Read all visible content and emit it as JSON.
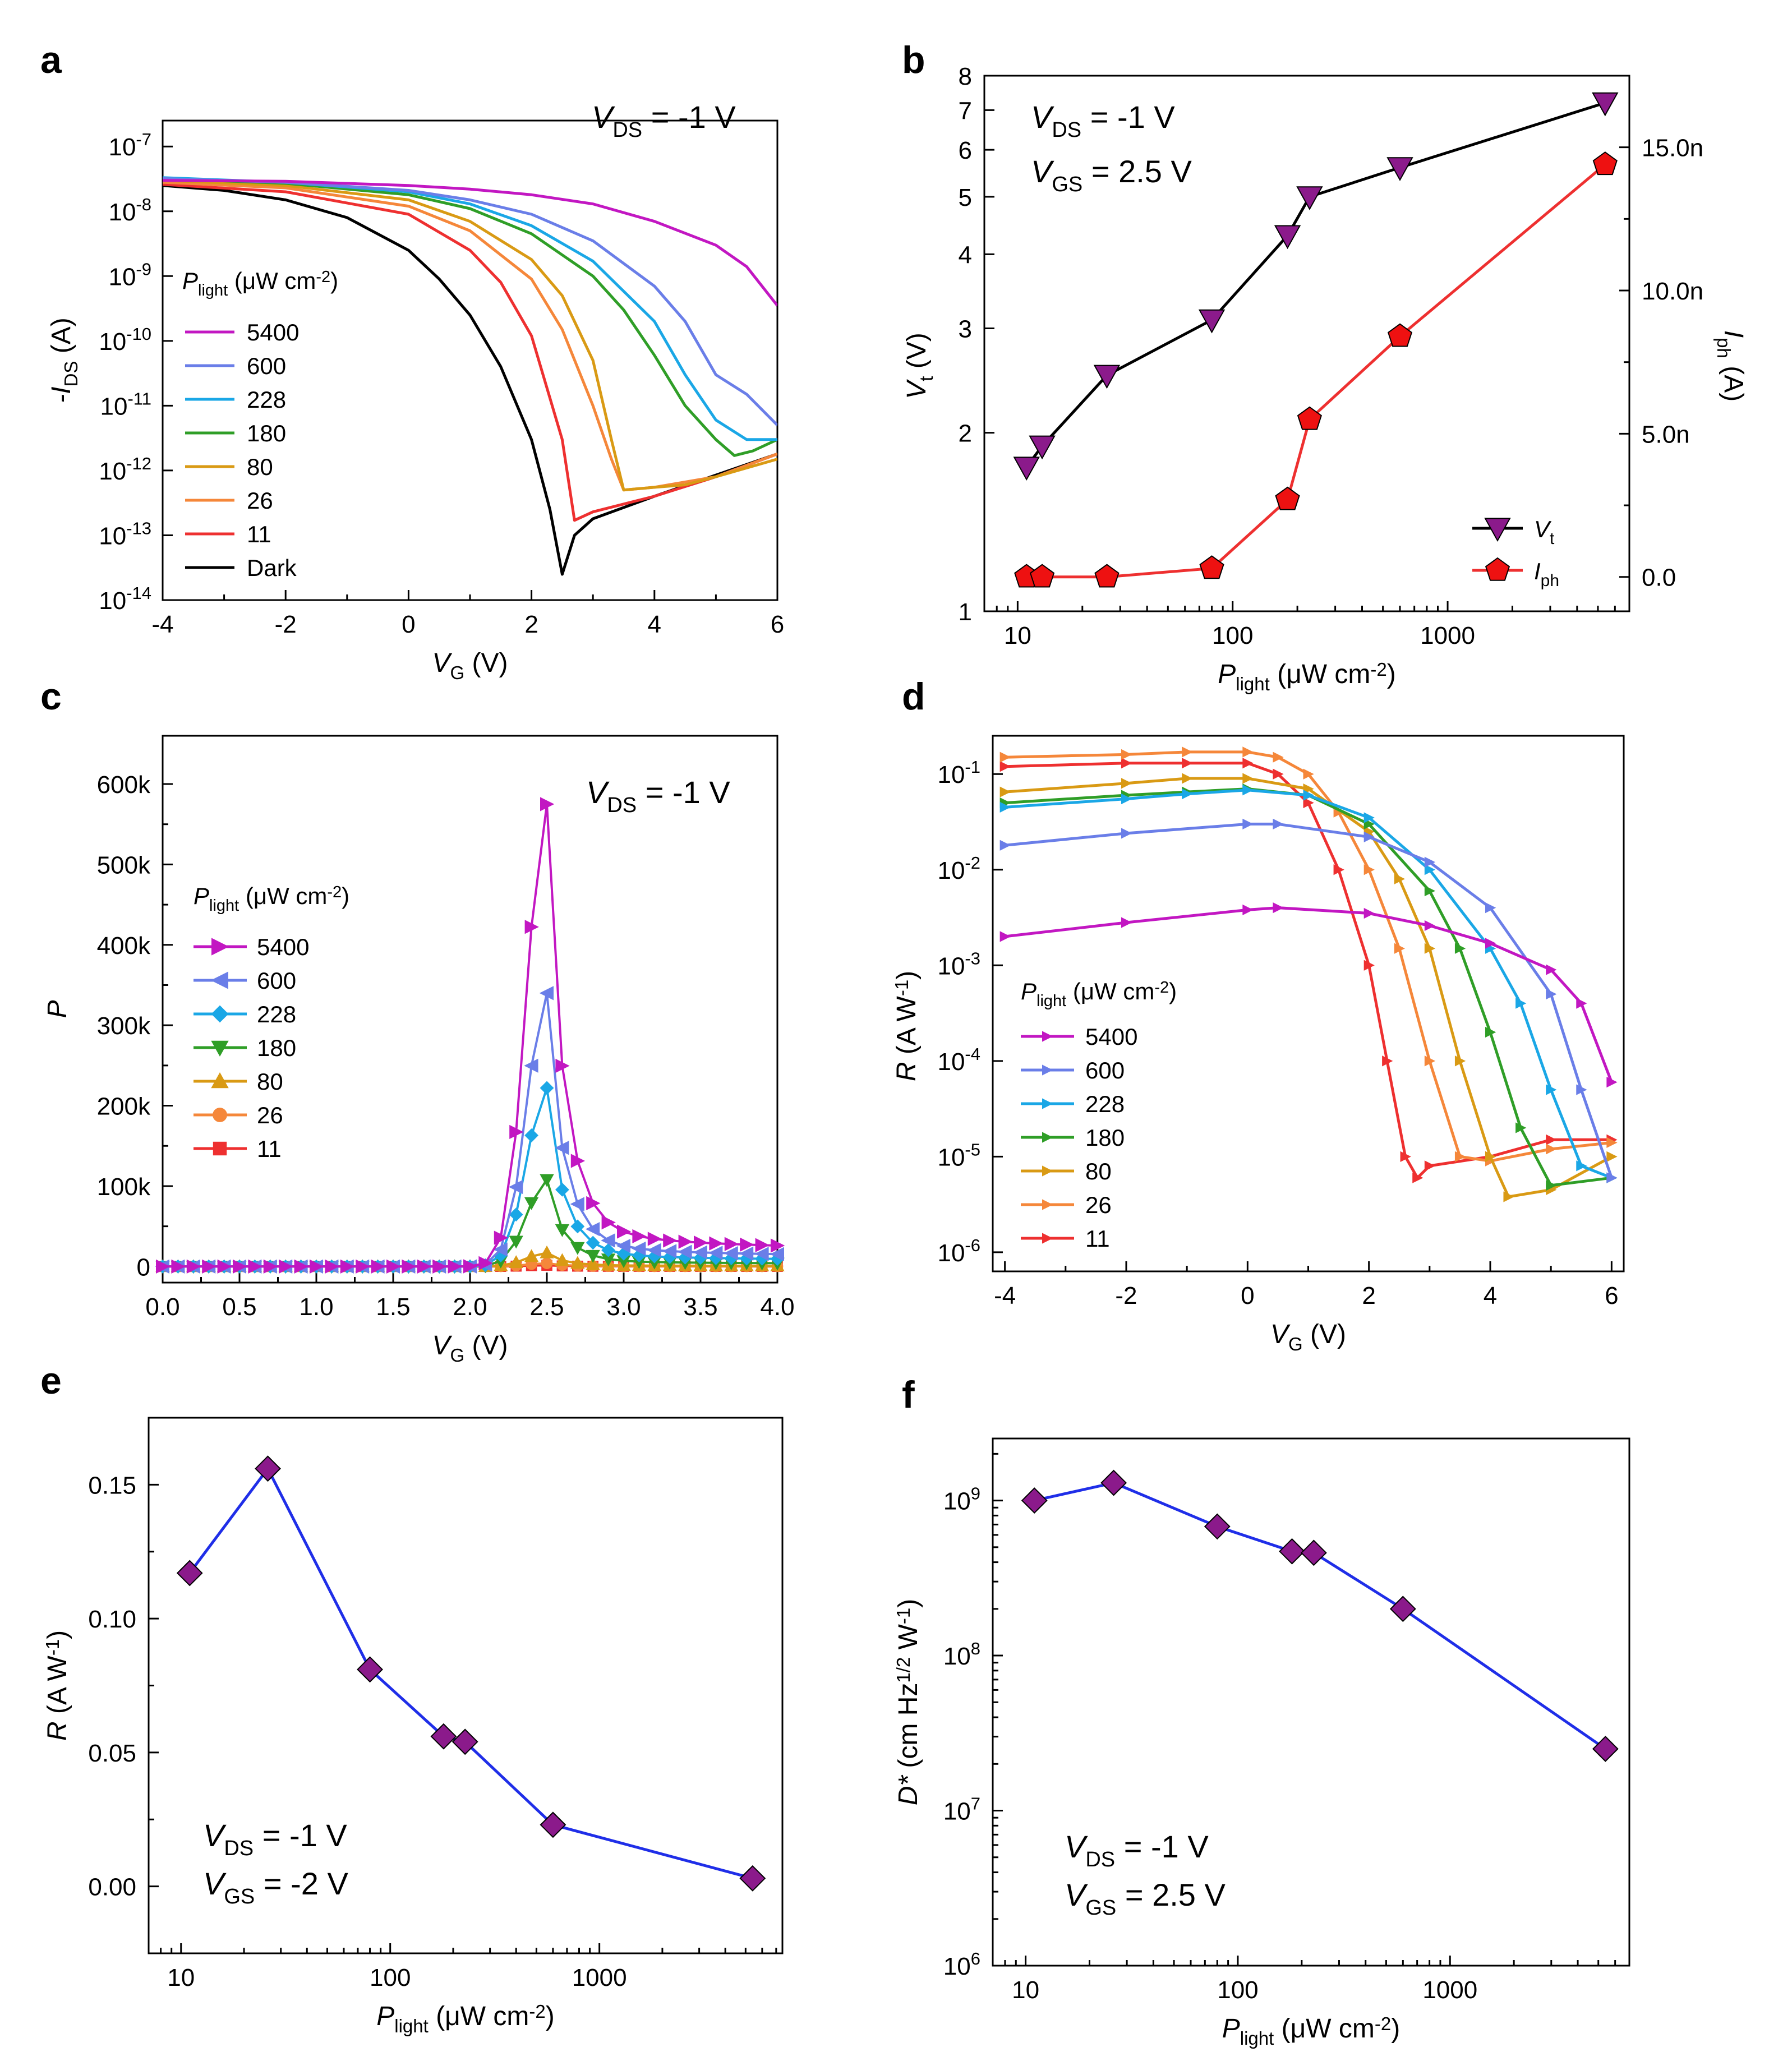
{
  "chart_data": [
    {
      "id": "a",
      "type": "line",
      "label": "a",
      "title": "",
      "xlabel": {
        "main": "V",
        "sub": "G",
        "unit": " (V)"
      },
      "ylabel": {
        "main": "-I",
        "sub": "DS",
        "unit": " (A)"
      },
      "xlim": [
        -4,
        6
      ],
      "ylim_log10": [
        -14,
        -6.6
      ],
      "yscale": "log",
      "xticks": [
        "-4",
        "-2",
        "0",
        "2",
        "4",
        "6"
      ],
      "yticks": [
        {
          "base": "10",
          "exp": "-14"
        },
        {
          "base": "10",
          "exp": "-13"
        },
        {
          "base": "10",
          "exp": "-12"
        },
        {
          "base": "10",
          "exp": "-11"
        },
        {
          "base": "10",
          "exp": "-10"
        },
        {
          "base": "10",
          "exp": "-9"
        },
        {
          "base": "10",
          "exp": "-8"
        },
        {
          "base": "10",
          "exp": "-7"
        }
      ],
      "annotation": {
        "main": "V",
        "sub": "DS",
        "rest": " = -1 V"
      },
      "legend_title": {
        "main": "P",
        "sub": "light",
        "rest": " (μW cm",
        "exp": "-2",
        "end": ")"
      },
      "legend_position": "left",
      "series": [
        {
          "name": "5400",
          "color": "#c217c2",
          "x": [
            -4,
            -2,
            0,
            1,
            2,
            3,
            4,
            5,
            5.5,
            6
          ],
          "y": [
            3e-08,
            2.9e-08,
            2.5e-08,
            2.2e-08,
            1.8e-08,
            1.3e-08,
            7e-09,
            3e-09,
            1.4e-09,
            3.5e-10
          ]
        },
        {
          "name": "600",
          "color": "#6a7ee8",
          "x": [
            -4,
            -2,
            0,
            1,
            2,
            3,
            4,
            4.5,
            5,
            5.5,
            6
          ],
          "y": [
            3.2e-08,
            2.8e-08,
            2.1e-08,
            1.5e-08,
            9e-09,
            3.5e-09,
            7e-10,
            2e-10,
            3e-11,
            1.5e-11,
            5e-12
          ]
        },
        {
          "name": "228",
          "color": "#1aa7e6",
          "x": [
            -4,
            -2,
            0,
            1,
            2,
            3,
            4,
            4.5,
            5,
            5.5,
            6
          ],
          "y": [
            3.3e-08,
            2.8e-08,
            2e-08,
            1.3e-08,
            6e-09,
            1.7e-09,
            2e-10,
            3e-11,
            6e-12,
            3e-12,
            3e-12
          ]
        },
        {
          "name": "180",
          "color": "#2f9e27",
          "x": [
            -4,
            -2,
            0,
            1,
            2,
            3,
            3.5,
            4,
            4.5,
            5,
            5.3,
            5.6,
            6
          ],
          "y": [
            3.2e-08,
            2.7e-08,
            1.8e-08,
            1.1e-08,
            4.5e-09,
            1e-09,
            3e-10,
            6e-11,
            1e-11,
            3e-12,
            1.7e-12,
            2e-12,
            3e-12
          ]
        },
        {
          "name": "80",
          "color": "#d99a14",
          "x": [
            -4,
            -2,
            0,
            1,
            2,
            2.5,
            3,
            3.3,
            3.5,
            4,
            4.5,
            5,
            6
          ],
          "y": [
            3e-08,
            2.5e-08,
            1.5e-08,
            7e-09,
            1.8e-09,
            5e-10,
            5e-11,
            3e-12,
            5e-13,
            5.5e-13,
            6e-13,
            8e-13,
            1.5e-12
          ]
        },
        {
          "name": "26",
          "color": "#f5873a",
          "x": [
            -4,
            -2,
            0,
            1,
            2,
            2.5,
            3,
            3.3,
            3.5,
            4,
            5,
            6
          ],
          "y": [
            2.8e-08,
            2.3e-08,
            1.2e-08,
            5e-09,
            9e-10,
            1.5e-10,
            1e-11,
            1.5e-12,
            5e-13,
            5.5e-13,
            8e-13,
            1.8e-12
          ]
        },
        {
          "name": "11",
          "color": "#ee3030",
          "x": [
            -4,
            -2,
            0,
            1,
            1.5,
            2,
            2.5,
            2.7,
            3,
            4,
            5,
            6
          ],
          "y": [
            2.6e-08,
            2e-08,
            9e-09,
            2.5e-09,
            8e-10,
            1.2e-10,
            3e-12,
            1.7e-13,
            2.3e-13,
            4e-13,
            8e-13,
            1.8e-12
          ]
        },
        {
          "name": "Dark",
          "color": "#000000",
          "x": [
            -4,
            -3,
            -2,
            -1,
            0,
            0.5,
            1,
            1.5,
            2,
            2.3,
            2.5,
            2.7,
            3,
            4,
            5,
            6
          ],
          "y": [
            2.5e-08,
            2.1e-08,
            1.5e-08,
            8e-09,
            2.5e-09,
            9e-10,
            2.5e-10,
            4e-11,
            3e-12,
            2.5e-13,
            2.5e-14,
            1e-13,
            1.8e-13,
            4e-13,
            8.5e-13,
            1.8e-12
          ]
        }
      ]
    },
    {
      "id": "b",
      "type": "line",
      "label": "b",
      "xscale": "log",
      "xlim": [
        7,
        7000
      ],
      "xlabel": {
        "main": "P",
        "sub": "light",
        "rest": " (μW cm",
        "exp": "-2",
        "end": ")"
      },
      "xticks": [
        "10",
        "100",
        "1000"
      ],
      "ylabel_left": {
        "main": "V",
        "sub": "t",
        "unit": " (V)"
      },
      "yscale_left": "log",
      "ylim_left": [
        1,
        8
      ],
      "yticks_left": [
        "1",
        "2",
        "3",
        "4",
        "5",
        "6",
        "7",
        "8"
      ],
      "ylabel_right": {
        "main": "I",
        "sub": "ph",
        "unit": " (A)"
      },
      "ylim_right": [
        -1.2,
        17.5
      ],
      "yticks_right": [
        {
          "value": 0,
          "label": "0.0"
        },
        {
          "value": 5,
          "label": "5.0n"
        },
        {
          "value": 10,
          "label": "10.0n"
        },
        {
          "value": 15,
          "label": "15.0n"
        }
      ],
      "annotation_lines": [
        {
          "main": "V",
          "sub": "DS",
          "rest": " = -1 V"
        },
        {
          "main": "V",
          "sub": "GS",
          "rest": " = 2.5 V"
        }
      ],
      "legend_position": "bottom-right",
      "series": [
        {
          "name": "V",
          "sub": "t",
          "color": "#000000",
          "marker_color": "#8b1a8b",
          "axis": "left",
          "x": [
            11,
            13,
            26,
            80,
            180,
            228,
            600,
            5400
          ],
          "y": [
            1.75,
            1.9,
            2.5,
            3.1,
            4.3,
            5.0,
            5.6,
            7.2
          ]
        },
        {
          "name": "I",
          "sub": "ph",
          "color": "#ee3030",
          "marker_color": "#ee1111",
          "axis": "right",
          "x": [
            11,
            13,
            26,
            80,
            180,
            228,
            600,
            5400
          ],
          "y": [
            0.0,
            0.0,
            0.0,
            0.3,
            2.7,
            5.5,
            8.4,
            14.4
          ]
        }
      ]
    },
    {
      "id": "c",
      "type": "line",
      "label": "c",
      "xlim": [
        0,
        4
      ],
      "ylim": [
        -20000,
        660000
      ],
      "xlabel": {
        "main": "V",
        "sub": "G",
        "unit": " (V)"
      },
      "ylabel": {
        "main": "P",
        "sub": "",
        "unit": ""
      },
      "xticks": [
        "0.0",
        "0.5",
        "1.0",
        "1.5",
        "2.0",
        "2.5",
        "3.0",
        "3.5",
        "4.0"
      ],
      "yticks": [
        {
          "value": 0,
          "label": "0"
        },
        {
          "value": 100000,
          "label": "100k"
        },
        {
          "value": 200000,
          "label": "200k"
        },
        {
          "value": 300000,
          "label": "300k"
        },
        {
          "value": 400000,
          "label": "400k"
        },
        {
          "value": 500000,
          "label": "500k"
        },
        {
          "value": 600000,
          "label": "600k"
        }
      ],
      "annotation": {
        "main": "V",
        "sub": "DS",
        "rest": " = -1 V"
      },
      "legend_title": {
        "main": "P",
        "sub": "light",
        "rest": " (μW cm",
        "exp": "-2",
        "end": ")"
      },
      "legend_position": "left",
      "series": [
        {
          "name": "5400",
          "color": "#c217c2",
          "marker": "tri-right",
          "peak": 575000,
          "tail": 22000
        },
        {
          "name": "600",
          "color": "#6a7ee8",
          "marker": "tri-left",
          "peak": 340000,
          "tail": 13000
        },
        {
          "name": "228",
          "color": "#1aa7e6",
          "marker": "diamond",
          "peak": 222000,
          "tail": 8000
        },
        {
          "name": "180",
          "color": "#2f9e27",
          "marker": "tri-down",
          "peak": 108000,
          "tail": 3500
        },
        {
          "name": "80",
          "color": "#d99a14",
          "marker": "tri-up",
          "peak": 17000,
          "tail": 700
        },
        {
          "name": "26",
          "color": "#f5873a",
          "marker": "circle",
          "peak": 4000,
          "tail": 200
        },
        {
          "name": "11",
          "color": "#ee3030",
          "marker": "square",
          "peak": 1500,
          "tail": 100
        }
      ]
    },
    {
      "id": "d",
      "type": "line",
      "label": "d",
      "xlim": [
        -4.2,
        6.2
      ],
      "ylim_log10": [
        -6.2,
        -0.6
      ],
      "yscale": "log",
      "xlabel": {
        "main": "V",
        "sub": "G",
        "unit": " (V)"
      },
      "ylabel": {
        "main": "R",
        "sub": "",
        "unit": " (A W",
        "exp": "-1",
        "end": ")"
      },
      "xticks": [
        "-4",
        "-2",
        "0",
        "2",
        "4",
        "6"
      ],
      "yticks": [
        {
          "base": "10",
          "exp": "-6"
        },
        {
          "base": "10",
          "exp": "-5"
        },
        {
          "base": "10",
          "exp": "-4"
        },
        {
          "base": "10",
          "exp": "-3"
        },
        {
          "base": "10",
          "exp": "-2"
        },
        {
          "base": "10",
          "exp": "-1"
        }
      ],
      "legend_title": {
        "main": "P",
        "sub": "light",
        "rest": " (μW cm",
        "exp": "-2",
        "end": ")"
      },
      "legend_position": "left",
      "series": [
        {
          "name": "5400",
          "color": "#c217c2",
          "x": [
            -4,
            -2,
            0,
            0.5,
            2,
            3,
            4,
            5,
            5.5,
            6
          ],
          "y": [
            0.002,
            0.0028,
            0.0038,
            0.004,
            0.0035,
            0.0026,
            0.0017,
            0.0009,
            0.0004,
            6e-05
          ]
        },
        {
          "name": "600",
          "color": "#6a7ee8",
          "x": [
            -4,
            -2,
            0,
            0.5,
            2,
            3,
            4,
            5,
            5.5,
            6
          ],
          "y": [
            0.018,
            0.024,
            0.03,
            0.03,
            0.022,
            0.012,
            0.004,
            0.0005,
            5e-05,
            6e-06
          ]
        },
        {
          "name": "228",
          "color": "#1aa7e6",
          "x": [
            -4,
            -2,
            -1,
            0,
            1,
            2,
            3,
            4,
            4.5,
            5,
            5.5,
            6
          ],
          "y": [
            0.045,
            0.055,
            0.062,
            0.068,
            0.06,
            0.035,
            0.01,
            0.0015,
            0.0004,
            5e-05,
            8e-06,
            6e-06
          ]
        },
        {
          "name": "180",
          "color": "#2f9e27",
          "x": [
            -4,
            -2,
            -1,
            0,
            1,
            2,
            3,
            3.5,
            4,
            4.5,
            5,
            6
          ],
          "y": [
            0.05,
            0.06,
            0.065,
            0.07,
            0.06,
            0.03,
            0.006,
            0.0015,
            0.0002,
            2e-05,
            5e-06,
            6e-06
          ]
        },
        {
          "name": "80",
          "color": "#d99a14",
          "x": [
            -4,
            -2,
            -1,
            0,
            1,
            2,
            2.5,
            3,
            3.5,
            4,
            4.3,
            5,
            6
          ],
          "y": [
            0.065,
            0.08,
            0.09,
            0.09,
            0.07,
            0.025,
            0.008,
            0.0015,
            0.0001,
            1e-05,
            3.8e-06,
            4.5e-06,
            1e-05
          ]
        },
        {
          "name": "26",
          "color": "#f5873a",
          "x": [
            -4,
            -2,
            -1,
            0,
            0.5,
            1,
            1.5,
            2,
            2.5,
            3,
            3.5,
            4,
            5,
            6
          ],
          "y": [
            0.15,
            0.16,
            0.17,
            0.17,
            0.15,
            0.1,
            0.04,
            0.01,
            0.0015,
            0.0001,
            1e-05,
            9e-06,
            1.2e-05,
            1.4e-05
          ]
        },
        {
          "name": "11",
          "color": "#ee3030",
          "x": [
            -4,
            -2,
            -1,
            0,
            0.5,
            1,
            1.5,
            2,
            2.3,
            2.6,
            2.8,
            3,
            4,
            5,
            6
          ],
          "y": [
            0.12,
            0.13,
            0.13,
            0.13,
            0.1,
            0.05,
            0.01,
            0.001,
            0.0001,
            1e-05,
            6e-06,
            8e-06,
            1e-05,
            1.5e-05,
            1.5e-05
          ]
        }
      ]
    },
    {
      "id": "e",
      "type": "line",
      "label": "e",
      "xscale": "log",
      "xlim": [
        7,
        7500
      ],
      "ylim": [
        -0.025,
        0.175
      ],
      "xlabel": {
        "main": "P",
        "sub": "light",
        "rest": " (μW cm",
        "exp": "-2",
        "end": ")"
      },
      "ylabel": {
        "main": "R",
        "sub": "",
        "unit": " (A W",
        "exp": "-1",
        "end": ")"
      },
      "xticks": [
        "10",
        "100",
        "1000"
      ],
      "yticks": [
        {
          "value": 0,
          "label": "0.00"
        },
        {
          "value": 0.05,
          "label": "0.05"
        },
        {
          "value": 0.1,
          "label": "0.10"
        },
        {
          "value": 0.15,
          "label": "0.15"
        }
      ],
      "annotation_lines": [
        {
          "main": "V",
          "sub": "DS",
          "rest": " = -1 V"
        },
        {
          "main": "V",
          "sub": "GS",
          "rest": " = -2 V"
        }
      ],
      "series": [
        {
          "name": "R",
          "color": "#1f2ee8",
          "marker_color": "#8b1a8b",
          "x": [
            11,
            26,
            80,
            180,
            228,
            600,
            5400
          ],
          "y": [
            0.117,
            0.156,
            0.081,
            0.056,
            0.054,
            0.023,
            0.003
          ]
        }
      ]
    },
    {
      "id": "f",
      "type": "line",
      "label": "f",
      "xscale": "log",
      "xlim": [
        7,
        7000
      ],
      "yscale": "log",
      "ylim_log10": [
        6,
        9.4
      ],
      "xlabel": {
        "main": "P",
        "sub": "light",
        "rest": " (μW cm",
        "exp": "-2",
        "end": ")"
      },
      "ylabel": {
        "main": "D*",
        "sub": "",
        "unit": " (cm Hz",
        "exp": "1/2",
        "end": " W",
        "exp2": "-1",
        "end2": ")"
      },
      "xticks": [
        "10",
        "100",
        "1000"
      ],
      "yticks": [
        {
          "base": "10",
          "exp": "6"
        },
        {
          "base": "10",
          "exp": "7"
        },
        {
          "base": "10",
          "exp": "8"
        },
        {
          "base": "10",
          "exp": "9"
        }
      ],
      "annotation_lines": [
        {
          "main": "V",
          "sub": "DS",
          "rest": " = -1 V"
        },
        {
          "main": "V",
          "sub": "GS",
          "rest": " = 2.5 V"
        }
      ],
      "series": [
        {
          "name": "D*",
          "color": "#1f2ee8",
          "marker_color": "#8b1a8b",
          "x": [
            11,
            26,
            80,
            180,
            228,
            600,
            5400
          ],
          "y": [
            1000000000.0,
            1300000000.0,
            680000000.0,
            470000000.0,
            460000000.0,
            200000000.0,
            25000000.0
          ]
        }
      ]
    }
  ]
}
